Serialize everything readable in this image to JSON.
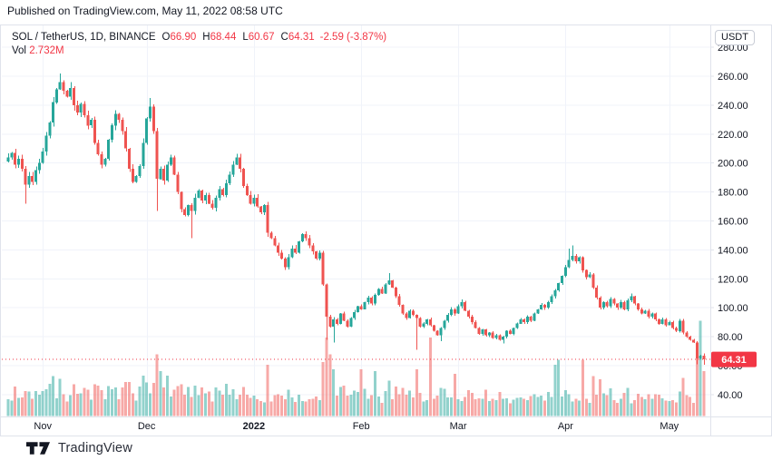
{
  "published_line": "Published on TradingView.com, May 11, 2022 08:58 UTC",
  "footer": {
    "brand": "TradingView"
  },
  "legend": {
    "symbol": "SOL / TetherUS, 1D, BINANCE",
    "o_label": "O",
    "o": "66.90",
    "h_label": "H",
    "h": "68.44",
    "l_label": "L",
    "l": "60.67",
    "c_label": "C",
    "c": "64.31",
    "change": "-2.59 (-3.87%)",
    "vol_label": "Vol",
    "vol": "2.732M"
  },
  "price_axis": {
    "currency": "USDT",
    "last_price_label": "64.31",
    "ticks": [
      "280.00",
      "260.00",
      "240.00",
      "220.00",
      "200.00",
      "180.00",
      "160.00",
      "140.00",
      "120.00",
      "100.00",
      "80.00",
      "60.00",
      "40.00"
    ]
  },
  "colors": {
    "up": "#26a69a",
    "down": "#ef5350",
    "vol_up": "rgba(38,166,154,0.5)",
    "vol_down": "rgba(239,83,80,0.5)",
    "accent_red": "#f23645",
    "grid": "#f0f3fa",
    "border": "#e0e3eb",
    "text": "#131722"
  },
  "chart_data": {
    "type": "candlestick+volume",
    "symbol": "SOL/USDT",
    "interval": "1D",
    "exchange": "BINANCE",
    "title": "SOL / TetherUS, 1D, BINANCE",
    "last_price": 64.31,
    "last_volume_display": "2.732M",
    "ylim": [
      40,
      280
    ],
    "y_step": 20,
    "grid": true,
    "legend_position": "top-left",
    "x_axis": {
      "labels": [
        {
          "text": "Nov",
          "day": 10,
          "bold": false
        },
        {
          "text": "Dec",
          "day": 40,
          "bold": false
        },
        {
          "text": "2022",
          "day": 71,
          "bold": true
        },
        {
          "text": "Feb",
          "day": 102,
          "bold": false
        },
        {
          "text": "Mar",
          "day": 130,
          "bold": false
        },
        {
          "text": "Apr",
          "day": 161,
          "bold": false
        },
        {
          "text": "May",
          "day": 191,
          "bold": false
        }
      ]
    },
    "closes": [
      204,
      207,
      199,
      203,
      196,
      185,
      191,
      187,
      195,
      200,
      208,
      219,
      228,
      242,
      251,
      256,
      250,
      246,
      252,
      240,
      235,
      241,
      233,
      226,
      230,
      214,
      206,
      199,
      203,
      216,
      226,
      234,
      230,
      222,
      210,
      196,
      187,
      191,
      198,
      214,
      231,
      239,
      222,
      189,
      196,
      188,
      199,
      204,
      192,
      180,
      168,
      164,
      171,
      167,
      176,
      181,
      174,
      178,
      172,
      169,
      176,
      182,
      178,
      186,
      192,
      199,
      204,
      196,
      184,
      178,
      172,
      176,
      170,
      166,
      171,
      152,
      148,
      143,
      138,
      134,
      128,
      135,
      141,
      138,
      146,
      151,
      148,
      143,
      139,
      134,
      138,
      116,
      94,
      87,
      92,
      89,
      96,
      91,
      87,
      93,
      97,
      101,
      99,
      104,
      107,
      103,
      109,
      113,
      110,
      116,
      119,
      114,
      108,
      102,
      96,
      93,
      98,
      95,
      93,
      87,
      89,
      92,
      88,
      84,
      81,
      86,
      91,
      95,
      99,
      96,
      101,
      104,
      98,
      94,
      90,
      86,
      82,
      85,
      81,
      83,
      79,
      81,
      78,
      80,
      84,
      82,
      86,
      89,
      92,
      90,
      94,
      91,
      96,
      99,
      102,
      100,
      104,
      108,
      112,
      117,
      122,
      128,
      133,
      136,
      132,
      135,
      126,
      121,
      123,
      114,
      107,
      100,
      104,
      101,
      106,
      103,
      100,
      104,
      99,
      105,
      108,
      103,
      99,
      96,
      98,
      94,
      96,
      92,
      89,
      92,
      88,
      90,
      86,
      84,
      91,
      83,
      80,
      78,
      76,
      65,
      67,
      64.31
    ],
    "last_candle": {
      "open": 66.9,
      "high": 68.44,
      "low": 60.67,
      "close": 64.31
    },
    "high_overrides": {
      "15": 262,
      "41": 245,
      "66": 206.5,
      "110": 124,
      "162": 141,
      "163": 143,
      "180": 110
    },
    "low_overrides": {
      "5": 172,
      "43": 167,
      "53": 148,
      "75": 149,
      "92": 78,
      "94": 76,
      "118": 71,
      "125": 77,
      "143": 75.5,
      "199": 61
    },
    "volume_overrides": {
      "15": 0.4,
      "25": 0.34,
      "43": 0.66,
      "44": 0.48,
      "50": 0.34,
      "91": 0.58,
      "92": 0.84,
      "93": 0.66,
      "94": 0.5,
      "102": 0.5,
      "106": 0.48,
      "110": 0.38,
      "118": 0.5,
      "122": 0.84,
      "129": 0.45,
      "158": 0.55,
      "159": 0.6,
      "166": 0.6,
      "199": 0.62,
      "200": 1.02,
      "201": 0.48
    }
  }
}
